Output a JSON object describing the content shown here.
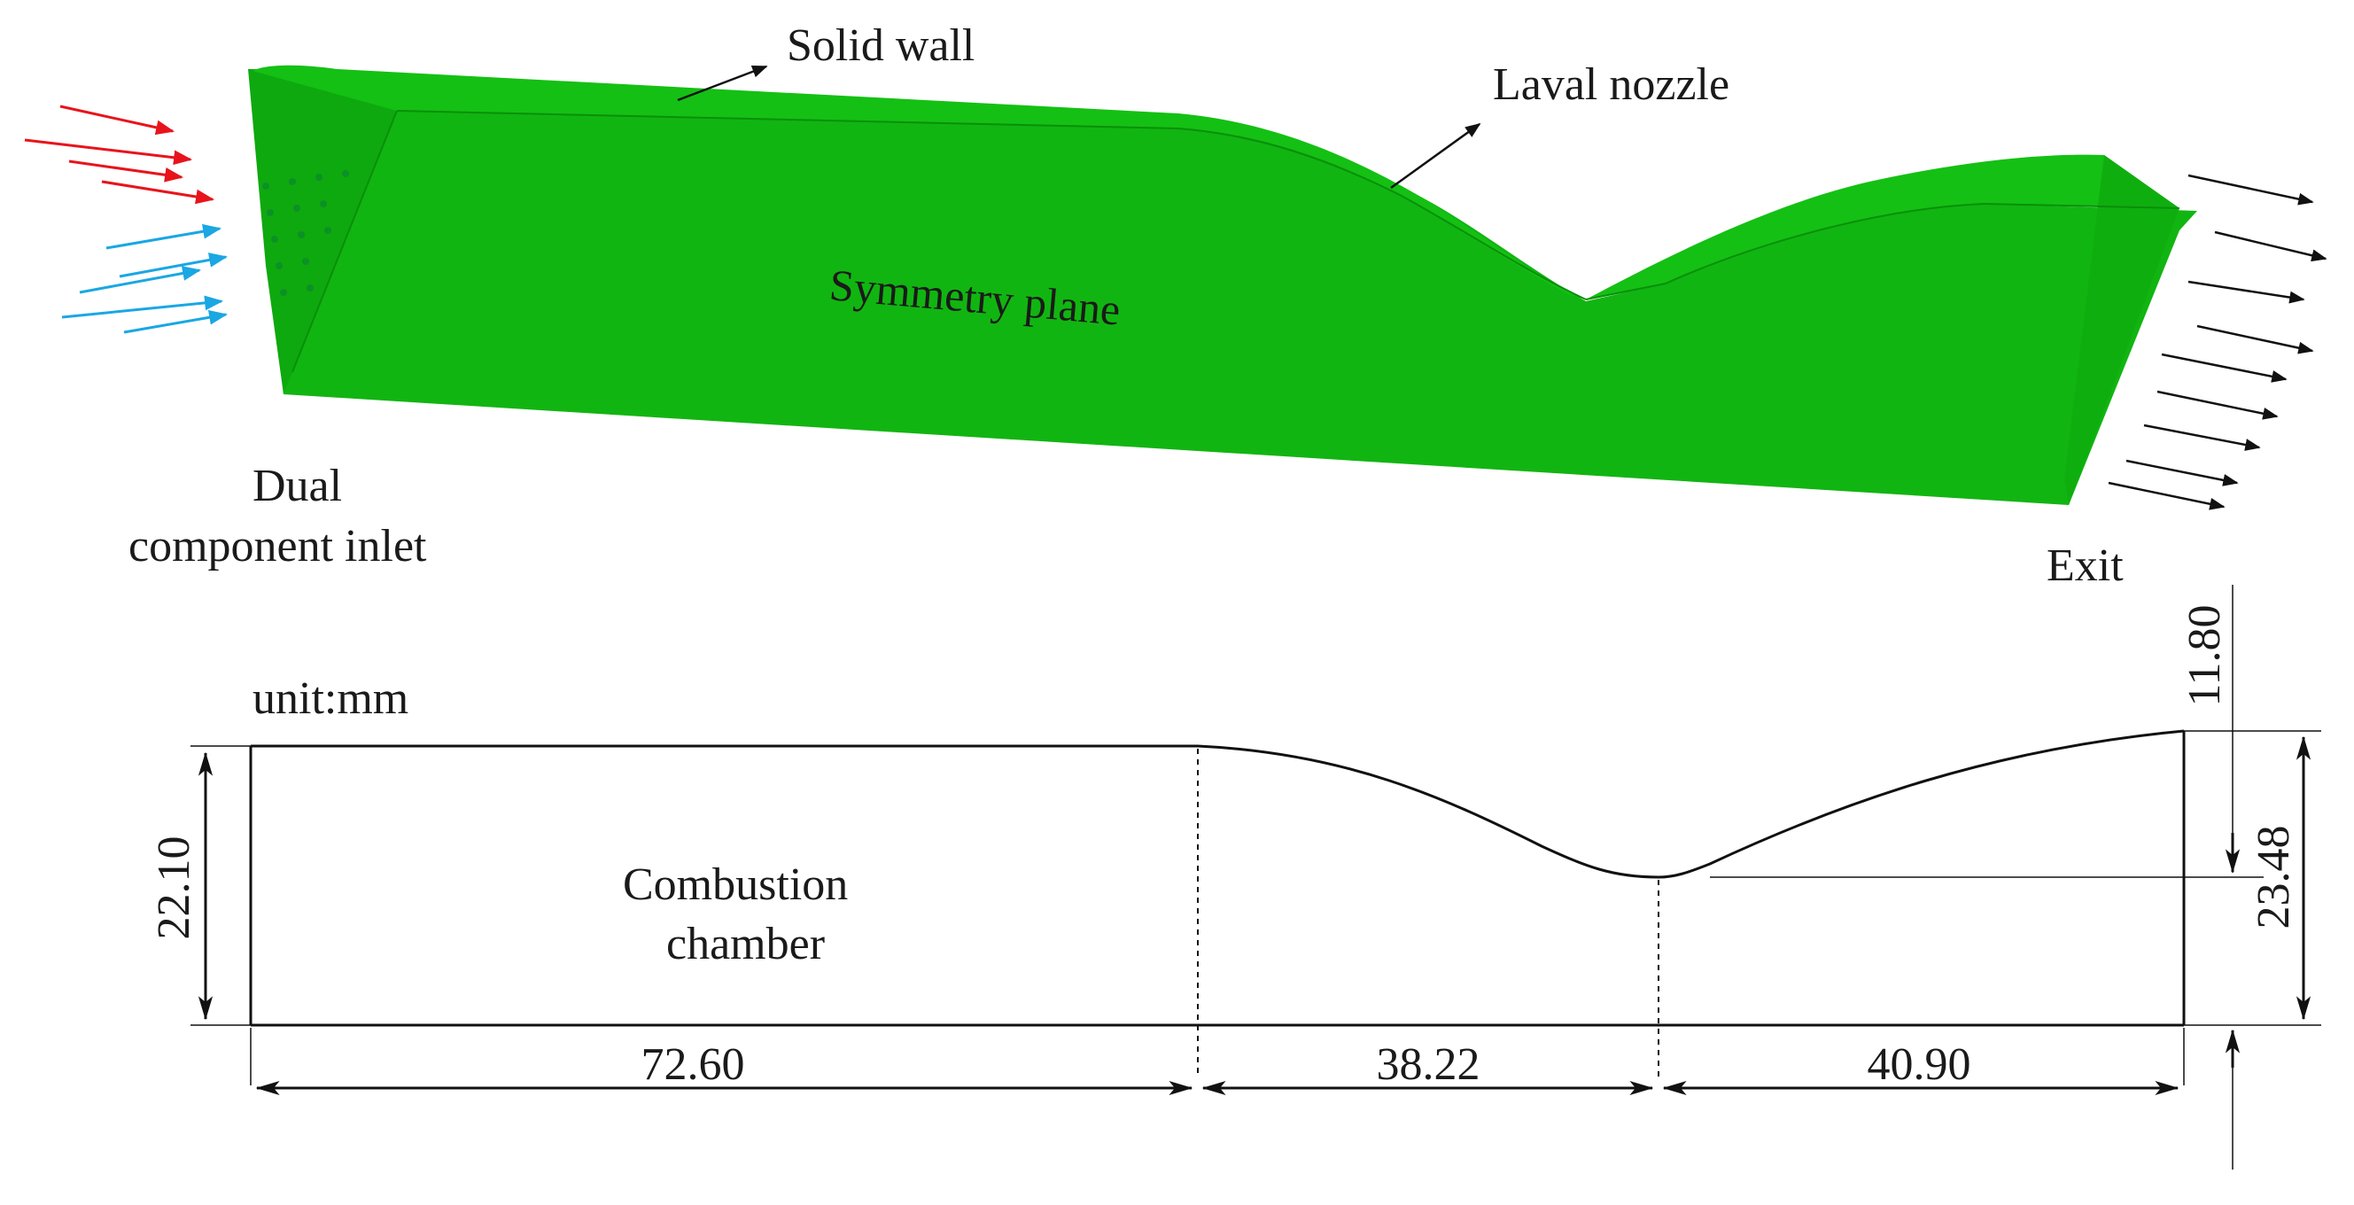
{
  "labels": {
    "solid_wall": "Solid  wall",
    "laval_nozzle": "Laval nozzle",
    "symmetry_plane": "Symmetry plane",
    "inlet_line1": "Dual",
    "inlet_line2": "component inlet",
    "exit": "Exit",
    "unit": "unit:mm",
    "chamber_line1": "Combustion",
    "chamber_line2": "chamber"
  },
  "dimensions": {
    "chamber_height": "22.10",
    "chamber_length": "72.60",
    "converging_length": "38.22",
    "diverging_length": "40.90",
    "throat_height": "11.80",
    "exit_height": "23.48"
  },
  "colors": {
    "body_green": "#11b511",
    "body_edge": "#0a8f0a",
    "inlet_red": "#e8141c",
    "inlet_blue": "#1aa7e3",
    "line": "#111111"
  }
}
